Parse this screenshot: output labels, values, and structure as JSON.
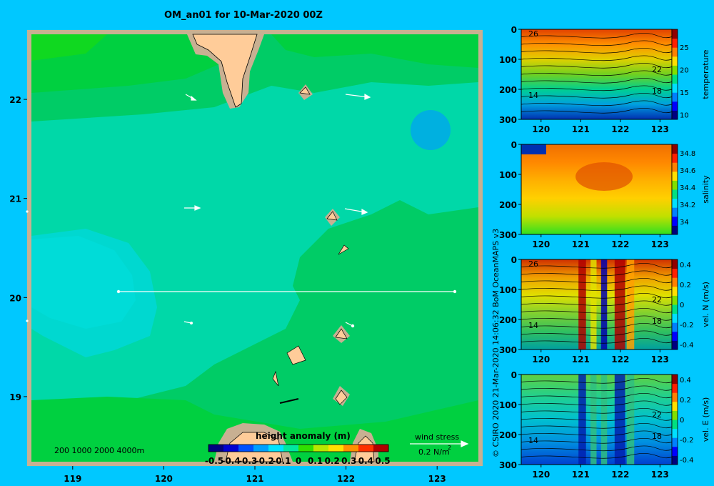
{
  "title": "OM_an01 for 10-Mar-2020 00Z",
  "map": {
    "x_ticks": [
      "119",
      "120",
      "121",
      "122",
      "123"
    ],
    "y_ticks": [
      "22",
      "21",
      "20",
      "19"
    ],
    "depth_legend": "200  1000  2000  4000m",
    "colorbar": {
      "label": "height anomaly  (m)",
      "ticks": [
        "-0.5",
        "-0.4",
        "-0.3",
        "-0.2",
        "-0.1",
        "0",
        "0.1",
        "0.2",
        "0.3",
        "0.4",
        "0.5"
      ],
      "colors": [
        "#00007f",
        "#0000d0",
        "#0050ff",
        "#00a0ff",
        "#00e4ff",
        "#00e8a0",
        "#30e000",
        "#b8e800",
        "#ffe000",
        "#ff9000",
        "#ff3000",
        "#b00000"
      ]
    },
    "wind_stress_label": "wind stress",
    "wind_stress_scale": "0.2 N/m",
    "wind_stress_exp": "2"
  },
  "chart_data": [
    {
      "type": "heatmap",
      "name": "map",
      "xlim": [
        118.5,
        123.5
      ],
      "ylim": [
        18.3,
        22.7
      ],
      "variable": "height anomaly (m)",
      "range": [
        -0.5,
        0.5
      ],
      "section_line": {
        "lat": 20,
        "lon": [
          119.5,
          123.2
        ]
      }
    },
    {
      "type": "heatmap",
      "ylabel": "temperature",
      "x_ticks": [
        "120",
        "121",
        "122",
        "123"
      ],
      "y_ticks": [
        "0",
        "100",
        "200",
        "300"
      ],
      "cb_ticks": [
        "25",
        "20",
        "15",
        "10"
      ],
      "contour_labels": [
        "26",
        "22",
        "18",
        "14"
      ],
      "xlim": [
        119.5,
        123.3
      ],
      "ylim": [
        0,
        300
      ],
      "crange": [
        9,
        29
      ]
    },
    {
      "type": "heatmap",
      "ylabel": "salinity",
      "x_ticks": [
        "120",
        "121",
        "122",
        "123"
      ],
      "y_ticks": [
        "0",
        "100",
        "200",
        "300"
      ],
      "cb_ticks": [
        "34.8",
        "34.6",
        "34.4",
        "34.2",
        "34"
      ],
      "contour_labels": [],
      "xlim": [
        119.5,
        123.3
      ],
      "ylim": [
        0,
        300
      ],
      "crange": [
        33.85,
        34.9
      ]
    },
    {
      "type": "heatmap",
      "ylabel": "vel. N (m/s)",
      "x_ticks": [
        "120",
        "121",
        "122",
        "123"
      ],
      "y_ticks": [
        "0",
        "100",
        "200",
        "300"
      ],
      "cb_ticks": [
        "0.4",
        "0.2",
        "0",
        "-0.2",
        "-0.4"
      ],
      "contour_labels": [
        "26",
        "22",
        "18",
        "14"
      ],
      "xlim": [
        119.5,
        123.3
      ],
      "ylim": [
        0,
        300
      ],
      "crange": [
        -0.45,
        0.45
      ]
    },
    {
      "type": "heatmap",
      "ylabel": "vel. E (m/s)",
      "x_ticks": [
        "120",
        "121",
        "122",
        "123"
      ],
      "y_ticks": [
        "0",
        "100",
        "200",
        "300"
      ],
      "cb_ticks": [
        "0.4",
        "0.2",
        "0",
        "-0.2",
        "-0.4"
      ],
      "contour_labels": [
        "22",
        "18",
        "14"
      ],
      "xlim": [
        119.5,
        123.3
      ],
      "ylim": [
        0,
        300
      ],
      "crange": [
        -0.45,
        0.45
      ]
    }
  ],
  "credit": "© CSIRO 2020  21-Mar-2020 14:06:32  BoM OceanMAPS v3"
}
